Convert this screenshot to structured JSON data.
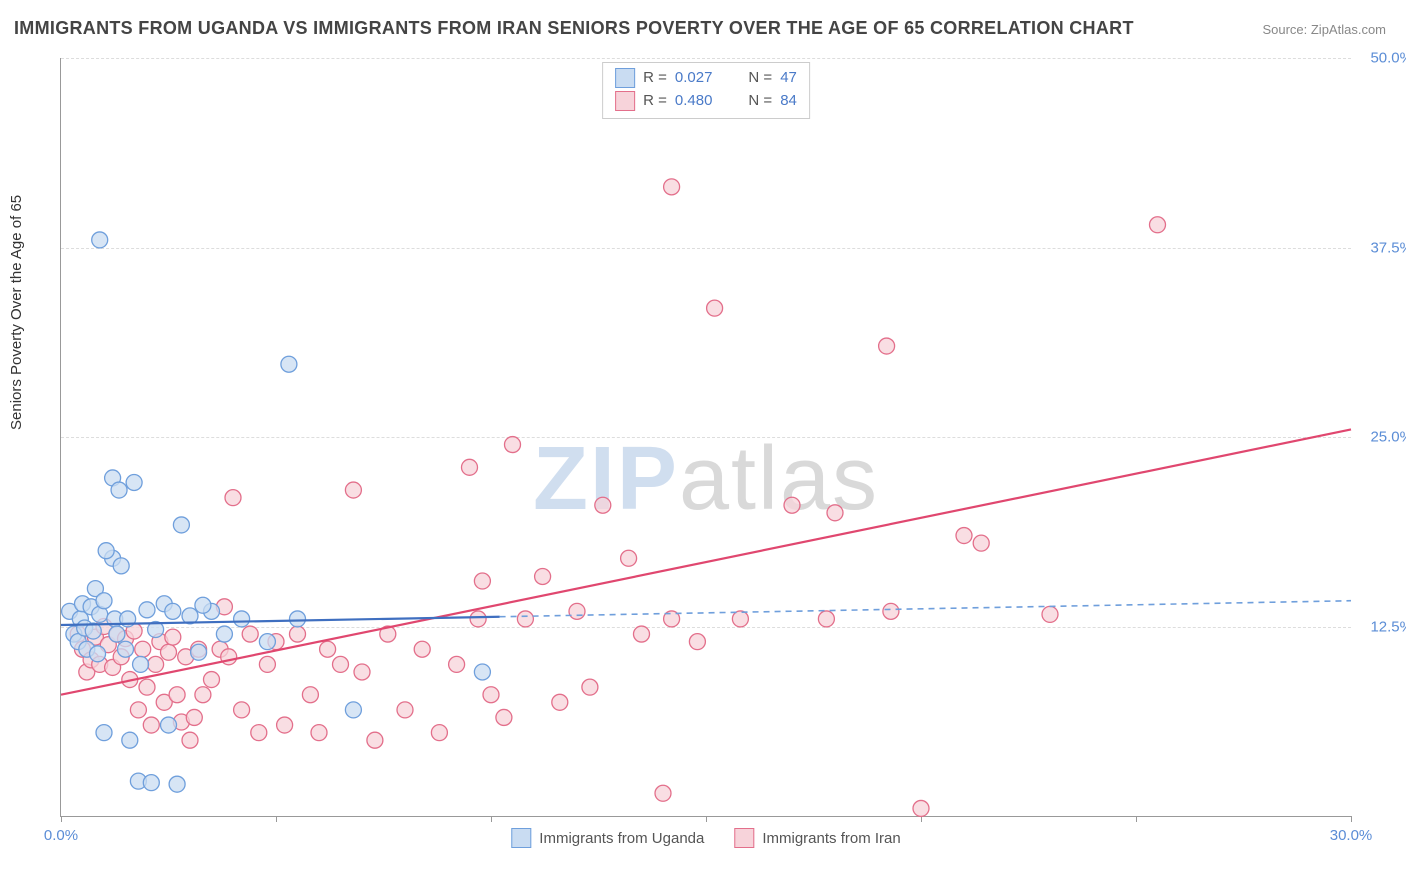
{
  "title": "IMMIGRANTS FROM UGANDA VS IMMIGRANTS FROM IRAN SENIORS POVERTY OVER THE AGE OF 65 CORRELATION CHART",
  "source": "Source: ZipAtlas.com",
  "ylabel": "Seniors Poverty Over the Age of 65",
  "watermark_a": "ZIP",
  "watermark_b": "atlas",
  "chart": {
    "type": "scatter",
    "background_color": "#ffffff",
    "grid_color": "#dddddd",
    "axis_color": "#999999",
    "xlim": [
      0,
      30
    ],
    "ylim": [
      0,
      50
    ],
    "xticks": [
      0,
      5,
      10,
      15,
      20,
      25,
      30
    ],
    "yticks": [
      12.5,
      25.0,
      37.5,
      50.0
    ],
    "xtick_labels": {
      "0": "0.0%",
      "30": "30.0%"
    },
    "tick_color": "#5b8dd6",
    "tick_fontsize": 15,
    "point_radius": 8,
    "point_stroke_width": 1.3,
    "line_width_solid": 2.2,
    "line_width_dash": 1.6
  },
  "series_a": {
    "label": "Immigrants from Uganda",
    "fill": "#c9dcf2",
    "stroke": "#6f9fdc",
    "R_label": "R =",
    "R": "0.027",
    "N_label": "N =",
    "N": "47",
    "line_color": "#3f6fc0",
    "line_dash_color": "#6f9fdc",
    "trend": {
      "x1": 0,
      "y1": 12.6,
      "x_solid_end": 10.2,
      "x2": 30,
      "y2": 14.2
    },
    "points": [
      [
        0.2,
        13.5
      ],
      [
        0.3,
        12.0
      ],
      [
        0.4,
        11.5
      ],
      [
        0.45,
        13.0
      ],
      [
        0.5,
        14.0
      ],
      [
        0.55,
        12.4
      ],
      [
        0.6,
        11.0
      ],
      [
        0.7,
        13.8
      ],
      [
        0.75,
        12.2
      ],
      [
        0.8,
        15.0
      ],
      [
        0.85,
        10.7
      ],
      [
        0.9,
        13.3
      ],
      [
        1.0,
        14.2
      ],
      [
        1.0,
        5.5
      ],
      [
        1.2,
        22.3
      ],
      [
        1.2,
        17.0
      ],
      [
        1.25,
        13.0
      ],
      [
        1.3,
        12.0
      ],
      [
        1.35,
        21.5
      ],
      [
        1.4,
        16.5
      ],
      [
        1.5,
        11.0
      ],
      [
        1.55,
        13.0
      ],
      [
        1.6,
        5.0
      ],
      [
        1.7,
        22.0
      ],
      [
        1.8,
        2.3
      ],
      [
        1.85,
        10.0
      ],
      [
        2.0,
        13.6
      ],
      [
        2.1,
        2.2
      ],
      [
        2.2,
        12.3
      ],
      [
        2.4,
        14.0
      ],
      [
        2.5,
        6.0
      ],
      [
        2.6,
        13.5
      ],
      [
        2.7,
        2.1
      ],
      [
        2.8,
        19.2
      ],
      [
        3.0,
        13.2
      ],
      [
        3.2,
        10.8
      ],
      [
        3.5,
        13.5
      ],
      [
        3.8,
        12.0
      ],
      [
        4.2,
        13.0
      ],
      [
        4.8,
        11.5
      ],
      [
        5.3,
        29.8
      ],
      [
        5.5,
        13.0
      ],
      [
        6.8,
        7.0
      ],
      [
        9.8,
        9.5
      ],
      [
        0.9,
        38.0
      ],
      [
        1.05,
        17.5
      ],
      [
        3.3,
        13.9
      ]
    ]
  },
  "series_b": {
    "label": "Immigrants from Iran",
    "fill": "#f7d3da",
    "stroke": "#e36f8b",
    "R_label": "R =",
    "R": "0.480",
    "N_label": "N =",
    "N": "84",
    "line_color": "#e0476f",
    "trend": {
      "x1": 0,
      "y1": 8.0,
      "x2": 30,
      "y2": 25.5
    },
    "points": [
      [
        0.4,
        12.0
      ],
      [
        0.5,
        11.0
      ],
      [
        0.6,
        9.5
      ],
      [
        0.7,
        10.3
      ],
      [
        0.8,
        11.8
      ],
      [
        0.9,
        10.0
      ],
      [
        1.0,
        12.5
      ],
      [
        1.1,
        11.3
      ],
      [
        1.2,
        9.8
      ],
      [
        1.3,
        12.0
      ],
      [
        1.4,
        10.5
      ],
      [
        1.5,
        11.7
      ],
      [
        1.6,
        9.0
      ],
      [
        1.7,
        12.2
      ],
      [
        1.8,
        7.0
      ],
      [
        1.9,
        11.0
      ],
      [
        2.0,
        8.5
      ],
      [
        2.1,
        6.0
      ],
      [
        2.2,
        10.0
      ],
      [
        2.3,
        11.5
      ],
      [
        2.4,
        7.5
      ],
      [
        2.5,
        10.8
      ],
      [
        2.6,
        11.8
      ],
      [
        2.7,
        8.0
      ],
      [
        2.8,
        6.2
      ],
      [
        2.9,
        10.5
      ],
      [
        3.0,
        5.0
      ],
      [
        3.1,
        6.5
      ],
      [
        3.2,
        11.0
      ],
      [
        3.3,
        8.0
      ],
      [
        3.5,
        9.0
      ],
      [
        3.7,
        11.0
      ],
      [
        3.8,
        13.8
      ],
      [
        3.9,
        10.5
      ],
      [
        4.0,
        21.0
      ],
      [
        4.2,
        7.0
      ],
      [
        4.4,
        12.0
      ],
      [
        4.6,
        5.5
      ],
      [
        4.8,
        10.0
      ],
      [
        5.0,
        11.5
      ],
      [
        5.2,
        6.0
      ],
      [
        5.5,
        12.0
      ],
      [
        5.8,
        8.0
      ],
      [
        6.0,
        5.5
      ],
      [
        6.2,
        11.0
      ],
      [
        6.5,
        10.0
      ],
      [
        6.8,
        21.5
      ],
      [
        7.0,
        9.5
      ],
      [
        7.3,
        5.0
      ],
      [
        7.6,
        12.0
      ],
      [
        8.0,
        7.0
      ],
      [
        8.4,
        11.0
      ],
      [
        8.8,
        5.5
      ],
      [
        9.2,
        10.0
      ],
      [
        9.5,
        23.0
      ],
      [
        9.7,
        13.0
      ],
      [
        9.8,
        15.5
      ],
      [
        10.0,
        8.0
      ],
      [
        10.3,
        6.5
      ],
      [
        10.5,
        24.5
      ],
      [
        10.8,
        13.0
      ],
      [
        11.2,
        15.8
      ],
      [
        11.6,
        7.5
      ],
      [
        12.0,
        13.5
      ],
      [
        12.3,
        8.5
      ],
      [
        12.6,
        20.5
      ],
      [
        13.2,
        17.0
      ],
      [
        13.5,
        12.0
      ],
      [
        14.0,
        1.5
      ],
      [
        14.2,
        13.0
      ],
      [
        14.2,
        41.5
      ],
      [
        14.8,
        11.5
      ],
      [
        15.2,
        33.5
      ],
      [
        15.8,
        13.0
      ],
      [
        17.0,
        20.5
      ],
      [
        17.8,
        13.0
      ],
      [
        18.0,
        20.0
      ],
      [
        19.2,
        31.0
      ],
      [
        19.3,
        13.5
      ],
      [
        20.0,
        0.5
      ],
      [
        21.0,
        18.5
      ],
      [
        21.4,
        18.0
      ],
      [
        23.0,
        13.3
      ],
      [
        25.5,
        39.0
      ]
    ]
  }
}
